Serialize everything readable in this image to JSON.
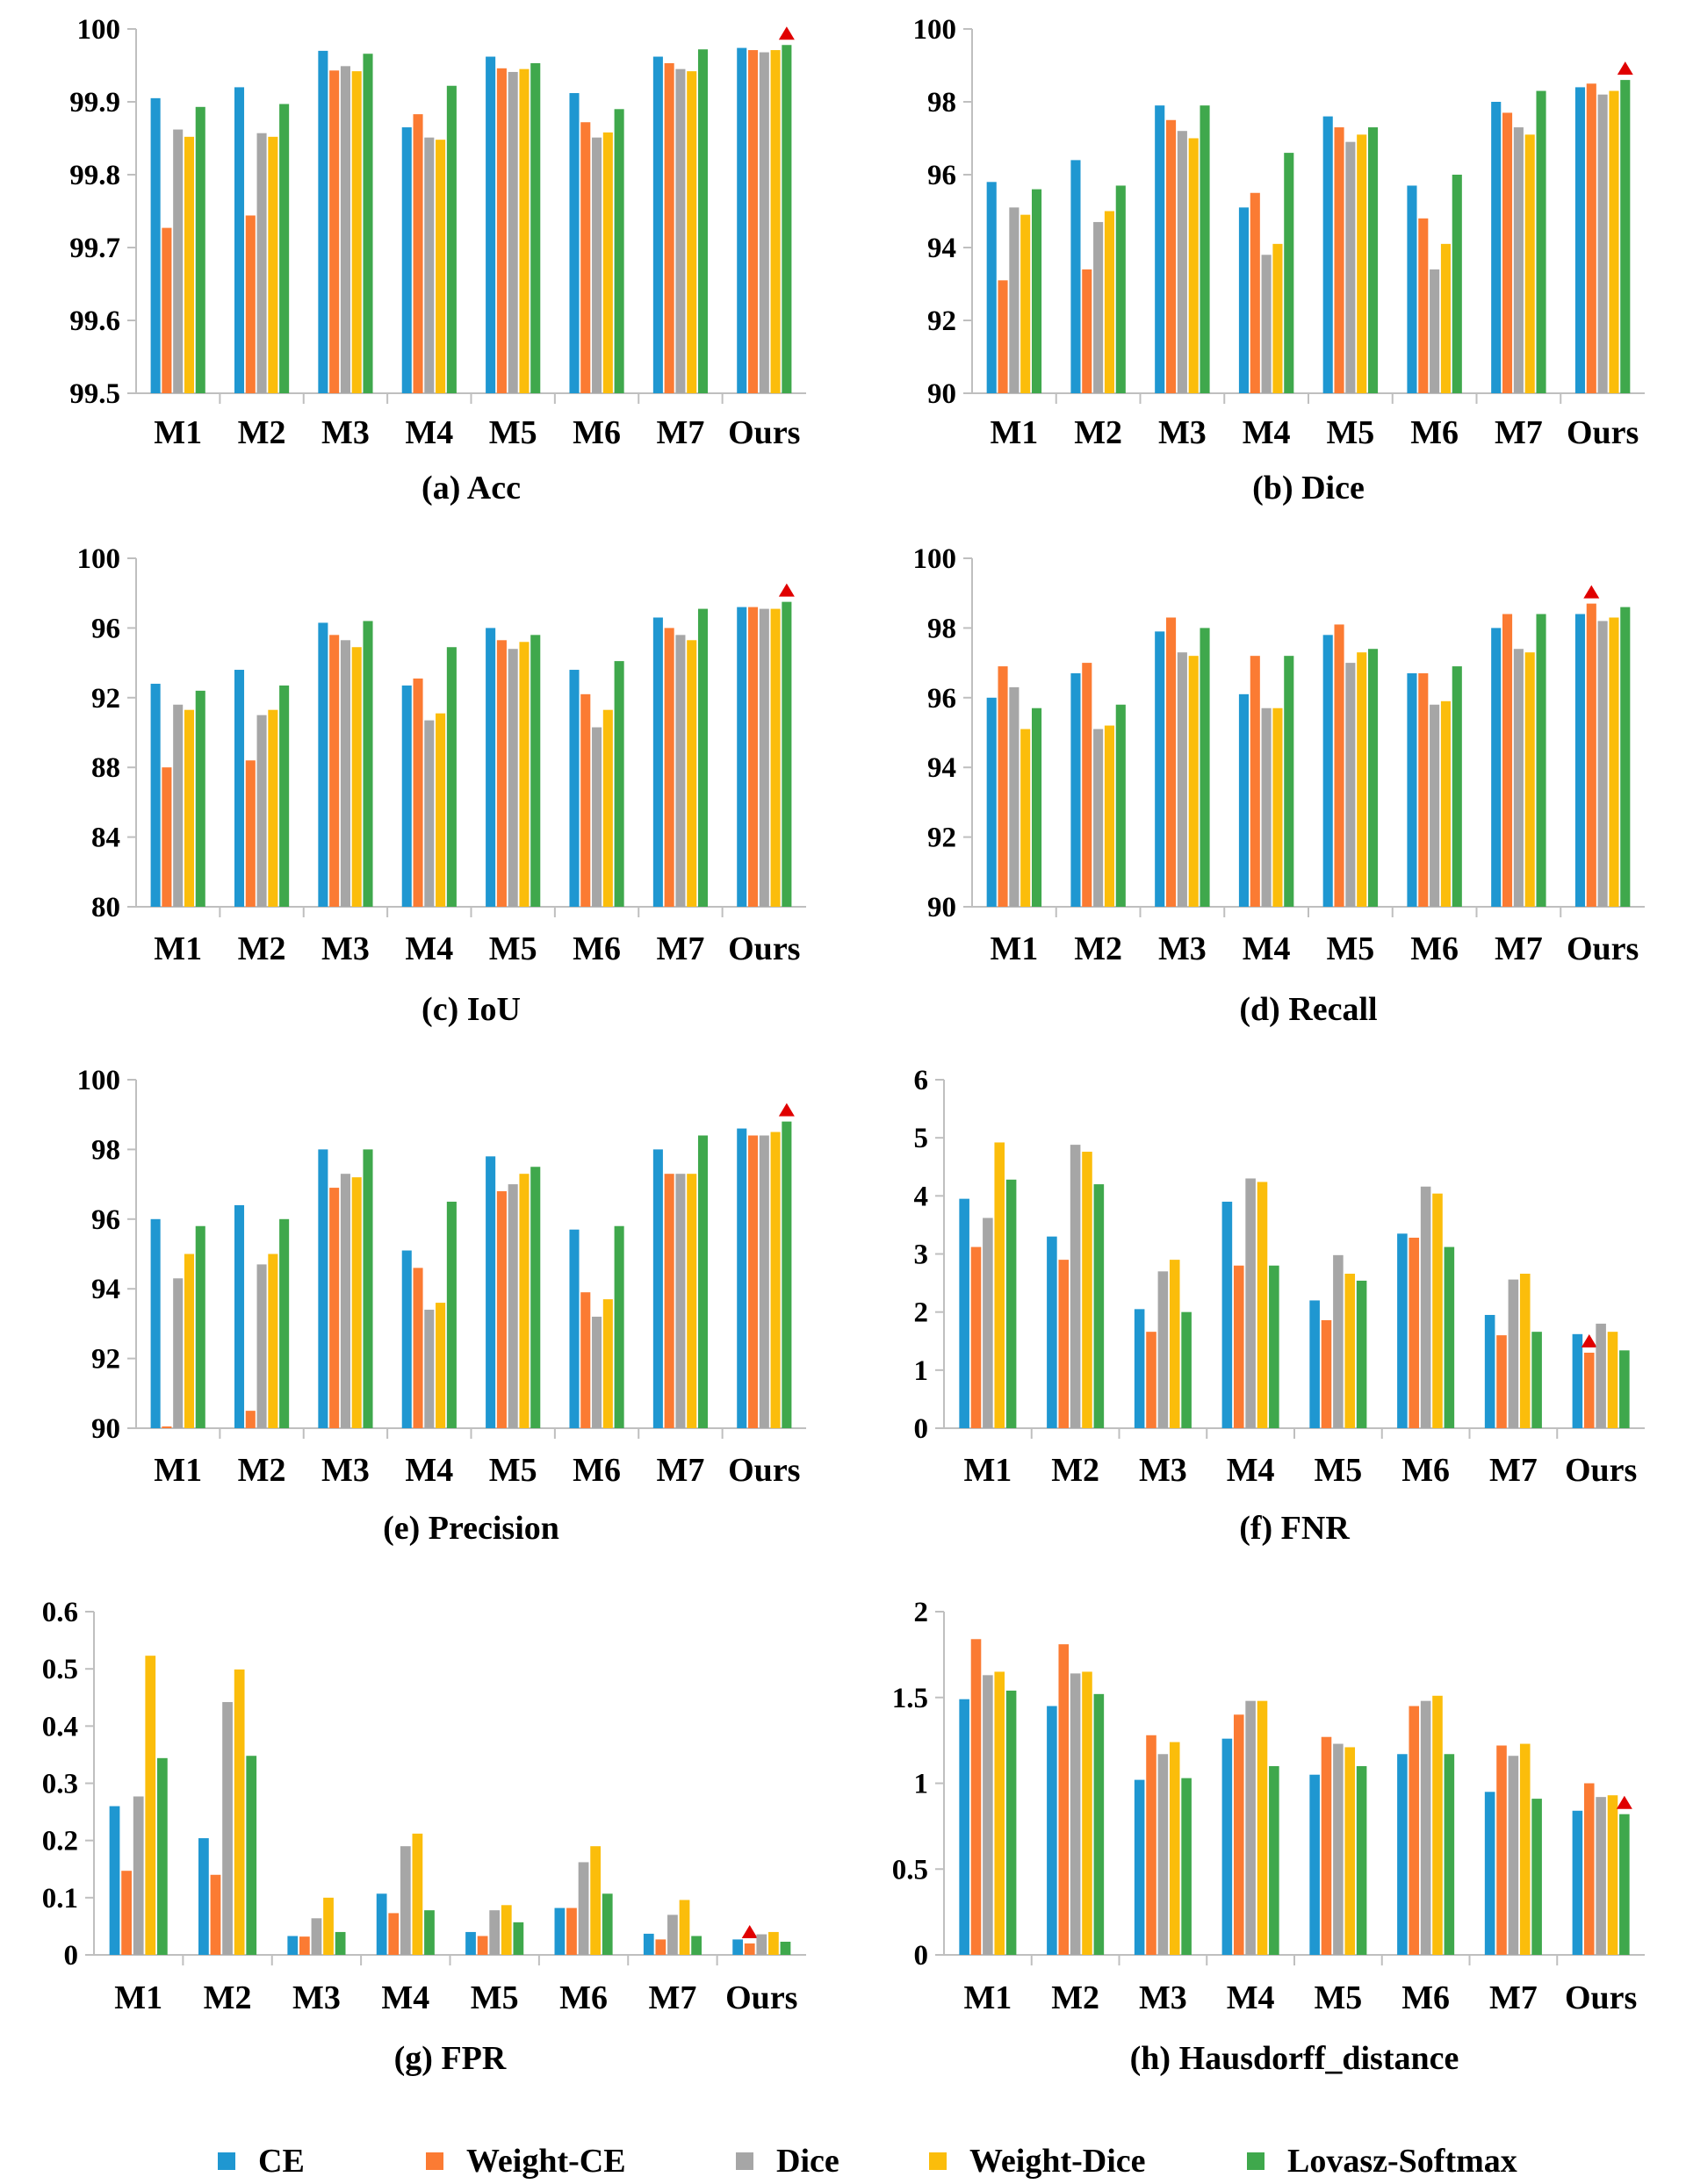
{
  "series_colors": [
    "#1f97d1",
    "#fb7b33",
    "#a6a6a6",
    "#fbbd0b",
    "#3fa84c"
  ],
  "marker_color": "#e00000",
  "legend": [
    "CE",
    "Weight-CE",
    "Dice",
    "Weight-Dice",
    "Lovasz-Softmax"
  ],
  "chart_data": [
    {
      "type": "bar",
      "title": "(a) Acc",
      "categories": [
        "M1",
        "M2",
        "M3",
        "M4",
        "M5",
        "M6",
        "M7",
        "Ours"
      ],
      "ylim": [
        99.5,
        100
      ],
      "yticks": [
        "99.5",
        "99.6",
        "99.7",
        "99.8",
        "99.9",
        "100"
      ],
      "tick_step": 0.1,
      "series": [
        {
          "name": "CE",
          "values": [
            99.905,
            99.92,
            99.97,
            99.865,
            99.962,
            99.912,
            99.962,
            99.974
          ]
        },
        {
          "name": "Weight-CE",
          "values": [
            99.727,
            99.744,
            99.943,
            99.883,
            99.946,
            99.872,
            99.953,
            99.971
          ]
        },
        {
          "name": "Dice",
          "values": [
            99.862,
            99.857,
            99.949,
            99.851,
            99.941,
            99.851,
            99.945,
            99.968
          ]
        },
        {
          "name": "Weight-Dice",
          "values": [
            99.852,
            99.852,
            99.942,
            99.848,
            99.945,
            99.858,
            99.942,
            99.971
          ]
        },
        {
          "name": "Lovasz-Softmax",
          "values": [
            99.893,
            99.897,
            99.966,
            99.922,
            99.953,
            99.89,
            99.972,
            99.978
          ]
        }
      ],
      "best": {
        "category": "Ours",
        "series": "Lovasz-Softmax"
      }
    },
    {
      "type": "bar",
      "title": "(b) Dice",
      "categories": [
        "M1",
        "M2",
        "M3",
        "M4",
        "M5",
        "M6",
        "M7",
        "Ours"
      ],
      "ylim": [
        90,
        100
      ],
      "yticks": [
        "90",
        "92",
        "94",
        "96",
        "98",
        "100"
      ],
      "tick_step": 2,
      "series": [
        {
          "name": "CE",
          "values": [
            95.8,
            96.4,
            97.9,
            95.1,
            97.6,
            95.7,
            98.0,
            98.4
          ]
        },
        {
          "name": "Weight-CE",
          "values": [
            93.1,
            93.4,
            97.5,
            95.5,
            97.3,
            94.8,
            97.7,
            98.5
          ]
        },
        {
          "name": "Dice",
          "values": [
            95.1,
            94.7,
            97.2,
            93.8,
            96.9,
            93.4,
            97.3,
            98.2
          ]
        },
        {
          "name": "Weight-Dice",
          "values": [
            94.9,
            95.0,
            97.0,
            94.1,
            97.1,
            94.1,
            97.1,
            98.3
          ]
        },
        {
          "name": "Lovasz-Softmax",
          "values": [
            95.6,
            95.7,
            97.9,
            96.6,
            97.3,
            96.0,
            98.3,
            98.6
          ]
        }
      ],
      "best": {
        "category": "Ours",
        "series": "Lovasz-Softmax"
      }
    },
    {
      "type": "bar",
      "title": "(c) IoU",
      "categories": [
        "M1",
        "M2",
        "M3",
        "M4",
        "M5",
        "M6",
        "M7",
        "Ours"
      ],
      "ylim": [
        80,
        100
      ],
      "yticks": [
        "80",
        "84",
        "88",
        "92",
        "96",
        "100"
      ],
      "tick_step": 4,
      "series": [
        {
          "name": "CE",
          "values": [
            92.8,
            93.6,
            96.3,
            92.7,
            96.0,
            93.6,
            96.6,
            97.2
          ]
        },
        {
          "name": "Weight-CE",
          "values": [
            88.0,
            88.4,
            95.6,
            93.1,
            95.3,
            92.2,
            96.0,
            97.2
          ]
        },
        {
          "name": "Dice",
          "values": [
            91.6,
            91.0,
            95.3,
            90.7,
            94.8,
            90.3,
            95.6,
            97.1
          ]
        },
        {
          "name": "Weight-Dice",
          "values": [
            91.3,
            91.3,
            94.9,
            91.1,
            95.2,
            91.3,
            95.3,
            97.1
          ]
        },
        {
          "name": "Lovasz-Softmax",
          "values": [
            92.4,
            92.7,
            96.4,
            94.9,
            95.6,
            94.1,
            97.1,
            97.5
          ]
        }
      ],
      "best": {
        "category": "Ours",
        "series": "Lovasz-Softmax"
      }
    },
    {
      "type": "bar",
      "title": "(d) Recall",
      "categories": [
        "M1",
        "M2",
        "M3",
        "M4",
        "M5",
        "M6",
        "M7",
        "Ours"
      ],
      "ylim": [
        90,
        100
      ],
      "yticks": [
        "90",
        "92",
        "94",
        "96",
        "98",
        "100"
      ],
      "tick_step": 2,
      "series": [
        {
          "name": "CE",
          "values": [
            96.0,
            96.7,
            97.9,
            96.1,
            97.8,
            96.7,
            98.0,
            98.4
          ]
        },
        {
          "name": "Weight-CE",
          "values": [
            96.9,
            97.0,
            98.3,
            97.2,
            98.1,
            96.7,
            98.4,
            98.7
          ]
        },
        {
          "name": "Dice",
          "values": [
            96.3,
            95.1,
            97.3,
            95.7,
            97.0,
            95.8,
            97.4,
            98.2
          ]
        },
        {
          "name": "Weight-Dice",
          "values": [
            95.1,
            95.2,
            97.2,
            95.7,
            97.3,
            95.9,
            97.3,
            98.3
          ]
        },
        {
          "name": "Lovasz-Softmax",
          "values": [
            95.7,
            95.8,
            98.0,
            97.2,
            97.4,
            96.9,
            98.4,
            98.6
          ]
        }
      ],
      "best": {
        "category": "Ours",
        "series": "Weight-CE"
      }
    },
    {
      "type": "bar",
      "title": "(e) Precision",
      "categories": [
        "M1",
        "M2",
        "M3",
        "M4",
        "M5",
        "M6",
        "M7",
        "Ours"
      ],
      "ylim": [
        90,
        100
      ],
      "yticks": [
        "90",
        "92",
        "94",
        "96",
        "98",
        "100"
      ],
      "tick_step": 2,
      "series": [
        {
          "name": "CE",
          "values": [
            96.0,
            96.4,
            98.0,
            95.1,
            97.8,
            95.7,
            98.0,
            98.6
          ]
        },
        {
          "name": "Weight-CE",
          "values": [
            90.05,
            90.5,
            96.9,
            94.6,
            96.8,
            93.9,
            97.3,
            98.4
          ]
        },
        {
          "name": "Dice",
          "values": [
            94.3,
            94.7,
            97.3,
            93.4,
            97.0,
            93.2,
            97.3,
            98.4
          ]
        },
        {
          "name": "Weight-Dice",
          "values": [
            95.0,
            95.0,
            97.2,
            93.6,
            97.3,
            93.7,
            97.3,
            98.5
          ]
        },
        {
          "name": "Lovasz-Softmax",
          "values": [
            95.8,
            96.0,
            98.0,
            96.5,
            97.5,
            95.8,
            98.4,
            98.8
          ]
        }
      ],
      "best": {
        "category": "Ours",
        "series": "Lovasz-Softmax"
      }
    },
    {
      "type": "bar",
      "title": "(f) FNR",
      "categories": [
        "M1",
        "M2",
        "M3",
        "M4",
        "M5",
        "M6",
        "M7",
        "Ours"
      ],
      "ylim": [
        0,
        6
      ],
      "yticks": [
        "0",
        "1",
        "2",
        "3",
        "4",
        "5",
        "6"
      ],
      "tick_step": 1,
      "series": [
        {
          "name": "CE",
          "values": [
            3.95,
            3.3,
            2.05,
            3.9,
            2.2,
            3.35,
            1.95,
            1.62
          ]
        },
        {
          "name": "Weight-CE",
          "values": [
            3.12,
            2.9,
            1.66,
            2.8,
            1.86,
            3.28,
            1.6,
            1.3
          ]
        },
        {
          "name": "Dice",
          "values": [
            3.62,
            4.88,
            2.7,
            4.3,
            2.98,
            4.16,
            2.56,
            1.8
          ]
        },
        {
          "name": "Weight-Dice",
          "values": [
            4.92,
            4.76,
            2.9,
            4.24,
            2.66,
            4.04,
            2.66,
            1.66
          ]
        },
        {
          "name": "Lovasz-Softmax",
          "values": [
            4.28,
            4.2,
            2.0,
            2.8,
            2.54,
            3.12,
            1.66,
            1.34
          ]
        }
      ],
      "best": {
        "category": "Ours",
        "series": "Weight-CE"
      }
    },
    {
      "type": "bar",
      "title": "(g) FPR",
      "categories": [
        "M1",
        "M2",
        "M3",
        "M4",
        "M5",
        "M6",
        "M7",
        "Ours"
      ],
      "ylim": [
        0,
        0.6
      ],
      "yticks": [
        "0",
        "0.1",
        "0.2",
        "0.3",
        "0.4",
        "0.5",
        "0.6"
      ],
      "tick_step": 0.1,
      "series": [
        {
          "name": "CE",
          "values": [
            0.26,
            0.204,
            0.033,
            0.107,
            0.04,
            0.082,
            0.037,
            0.027
          ]
        },
        {
          "name": "Weight-CE",
          "values": [
            0.147,
            0.14,
            0.032,
            0.073,
            0.033,
            0.082,
            0.027,
            0.02
          ]
        },
        {
          "name": "Dice",
          "values": [
            0.277,
            0.442,
            0.064,
            0.19,
            0.078,
            0.162,
            0.07,
            0.036
          ]
        },
        {
          "name": "Weight-Dice",
          "values": [
            0.523,
            0.499,
            0.1,
            0.212,
            0.087,
            0.19,
            0.096,
            0.04
          ]
        },
        {
          "name": "Lovasz-Softmax",
          "values": [
            0.344,
            0.348,
            0.04,
            0.078,
            0.057,
            0.107,
            0.033,
            0.023
          ]
        }
      ],
      "best": {
        "category": "Ours",
        "series": "Weight-CE"
      }
    },
    {
      "type": "bar",
      "title": "(h) Hausdorff_distance",
      "categories": [
        "M1",
        "M2",
        "M3",
        "M4",
        "M5",
        "M6",
        "M7",
        "Ours"
      ],
      "ylim": [
        0,
        2
      ],
      "yticks": [
        "0",
        "0.5",
        "1",
        "1.5",
        "2"
      ],
      "tick_step": 0.5,
      "series": [
        {
          "name": "CE",
          "values": [
            1.49,
            1.45,
            1.02,
            1.26,
            1.05,
            1.17,
            0.95,
            0.84
          ]
        },
        {
          "name": "Weight-CE",
          "values": [
            1.84,
            1.81,
            1.28,
            1.4,
            1.27,
            1.45,
            1.22,
            1.0
          ]
        },
        {
          "name": "Dice",
          "values": [
            1.63,
            1.64,
            1.17,
            1.48,
            1.23,
            1.48,
            1.16,
            0.92
          ]
        },
        {
          "name": "Weight-Dice",
          "values": [
            1.65,
            1.65,
            1.24,
            1.48,
            1.21,
            1.51,
            1.23,
            0.93
          ]
        },
        {
          "name": "Lovasz-Softmax",
          "values": [
            1.54,
            1.52,
            1.03,
            1.1,
            1.1,
            1.17,
            0.91,
            0.82
          ]
        }
      ],
      "best": {
        "category": "Ours",
        "series": "Lovasz-Softmax"
      }
    }
  ]
}
